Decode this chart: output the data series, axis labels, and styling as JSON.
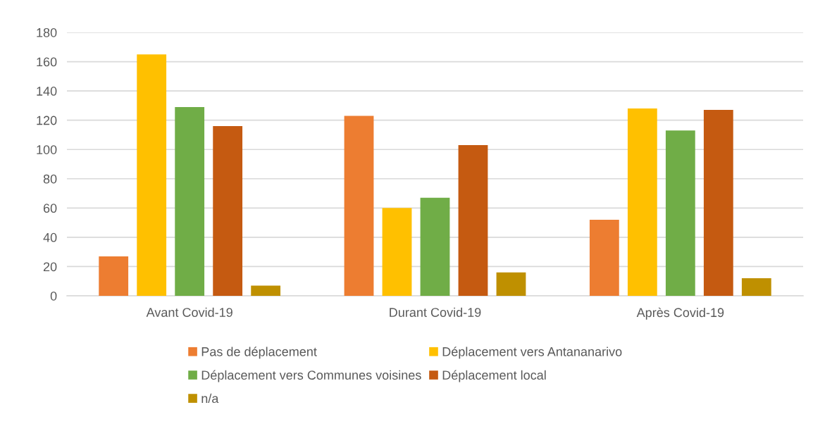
{
  "chart_data": {
    "type": "bar",
    "categories": [
      "Avant Covid-19",
      "Durant Covid-19",
      "Après Covid-19"
    ],
    "series": [
      {
        "name": "Pas de déplacement",
        "color": "#ed7d31",
        "values": [
          27,
          123,
          52
        ]
      },
      {
        "name": "Déplacement vers Antananarivo",
        "color": "#ffc000",
        "values": [
          165,
          60,
          128
        ]
      },
      {
        "name": "Déplacement vers Communes voisines",
        "color": "#70ad47",
        "values": [
          129,
          67,
          113
        ]
      },
      {
        "name": "Déplacement local",
        "color": "#c55a11",
        "values": [
          116,
          103,
          127
        ]
      },
      {
        "name": "n/a",
        "color": "#bf9000",
        "values": [
          7,
          16,
          12
        ]
      }
    ],
    "ylim": [
      0,
      180
    ],
    "yticks": [
      0,
      20,
      40,
      60,
      80,
      100,
      120,
      140,
      160,
      180
    ],
    "grid": "y",
    "legend": "bottom"
  }
}
